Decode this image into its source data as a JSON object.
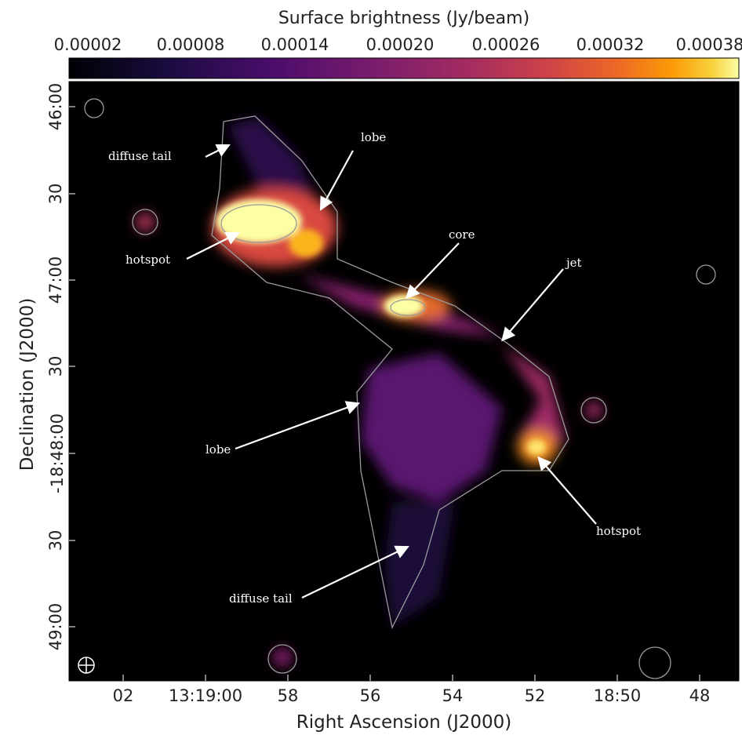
{
  "colorbar": {
    "label": "Surface brightness (Jy/beam)",
    "ticks": [
      "0.00002",
      "0.00008",
      "0.00014",
      "0.00020",
      "0.00026",
      "0.00032",
      "0.00038"
    ]
  },
  "axes": {
    "x_label": "Right Ascension (J2000)",
    "y_label": "Declination (J2000)",
    "x_ticks": [
      "02",
      "13:19:00",
      "58",
      "56",
      "54",
      "52",
      "18:50",
      "48"
    ],
    "y_ticks": [
      "46:00",
      "30",
      "47:00",
      "30",
      "-18:48:00",
      "30",
      "49:00"
    ]
  },
  "annotations": [
    "diffuse tail",
    "lobe",
    "hotspot",
    "core",
    "jet",
    "lobe",
    "hotspot",
    "diffuse tail"
  ]
}
